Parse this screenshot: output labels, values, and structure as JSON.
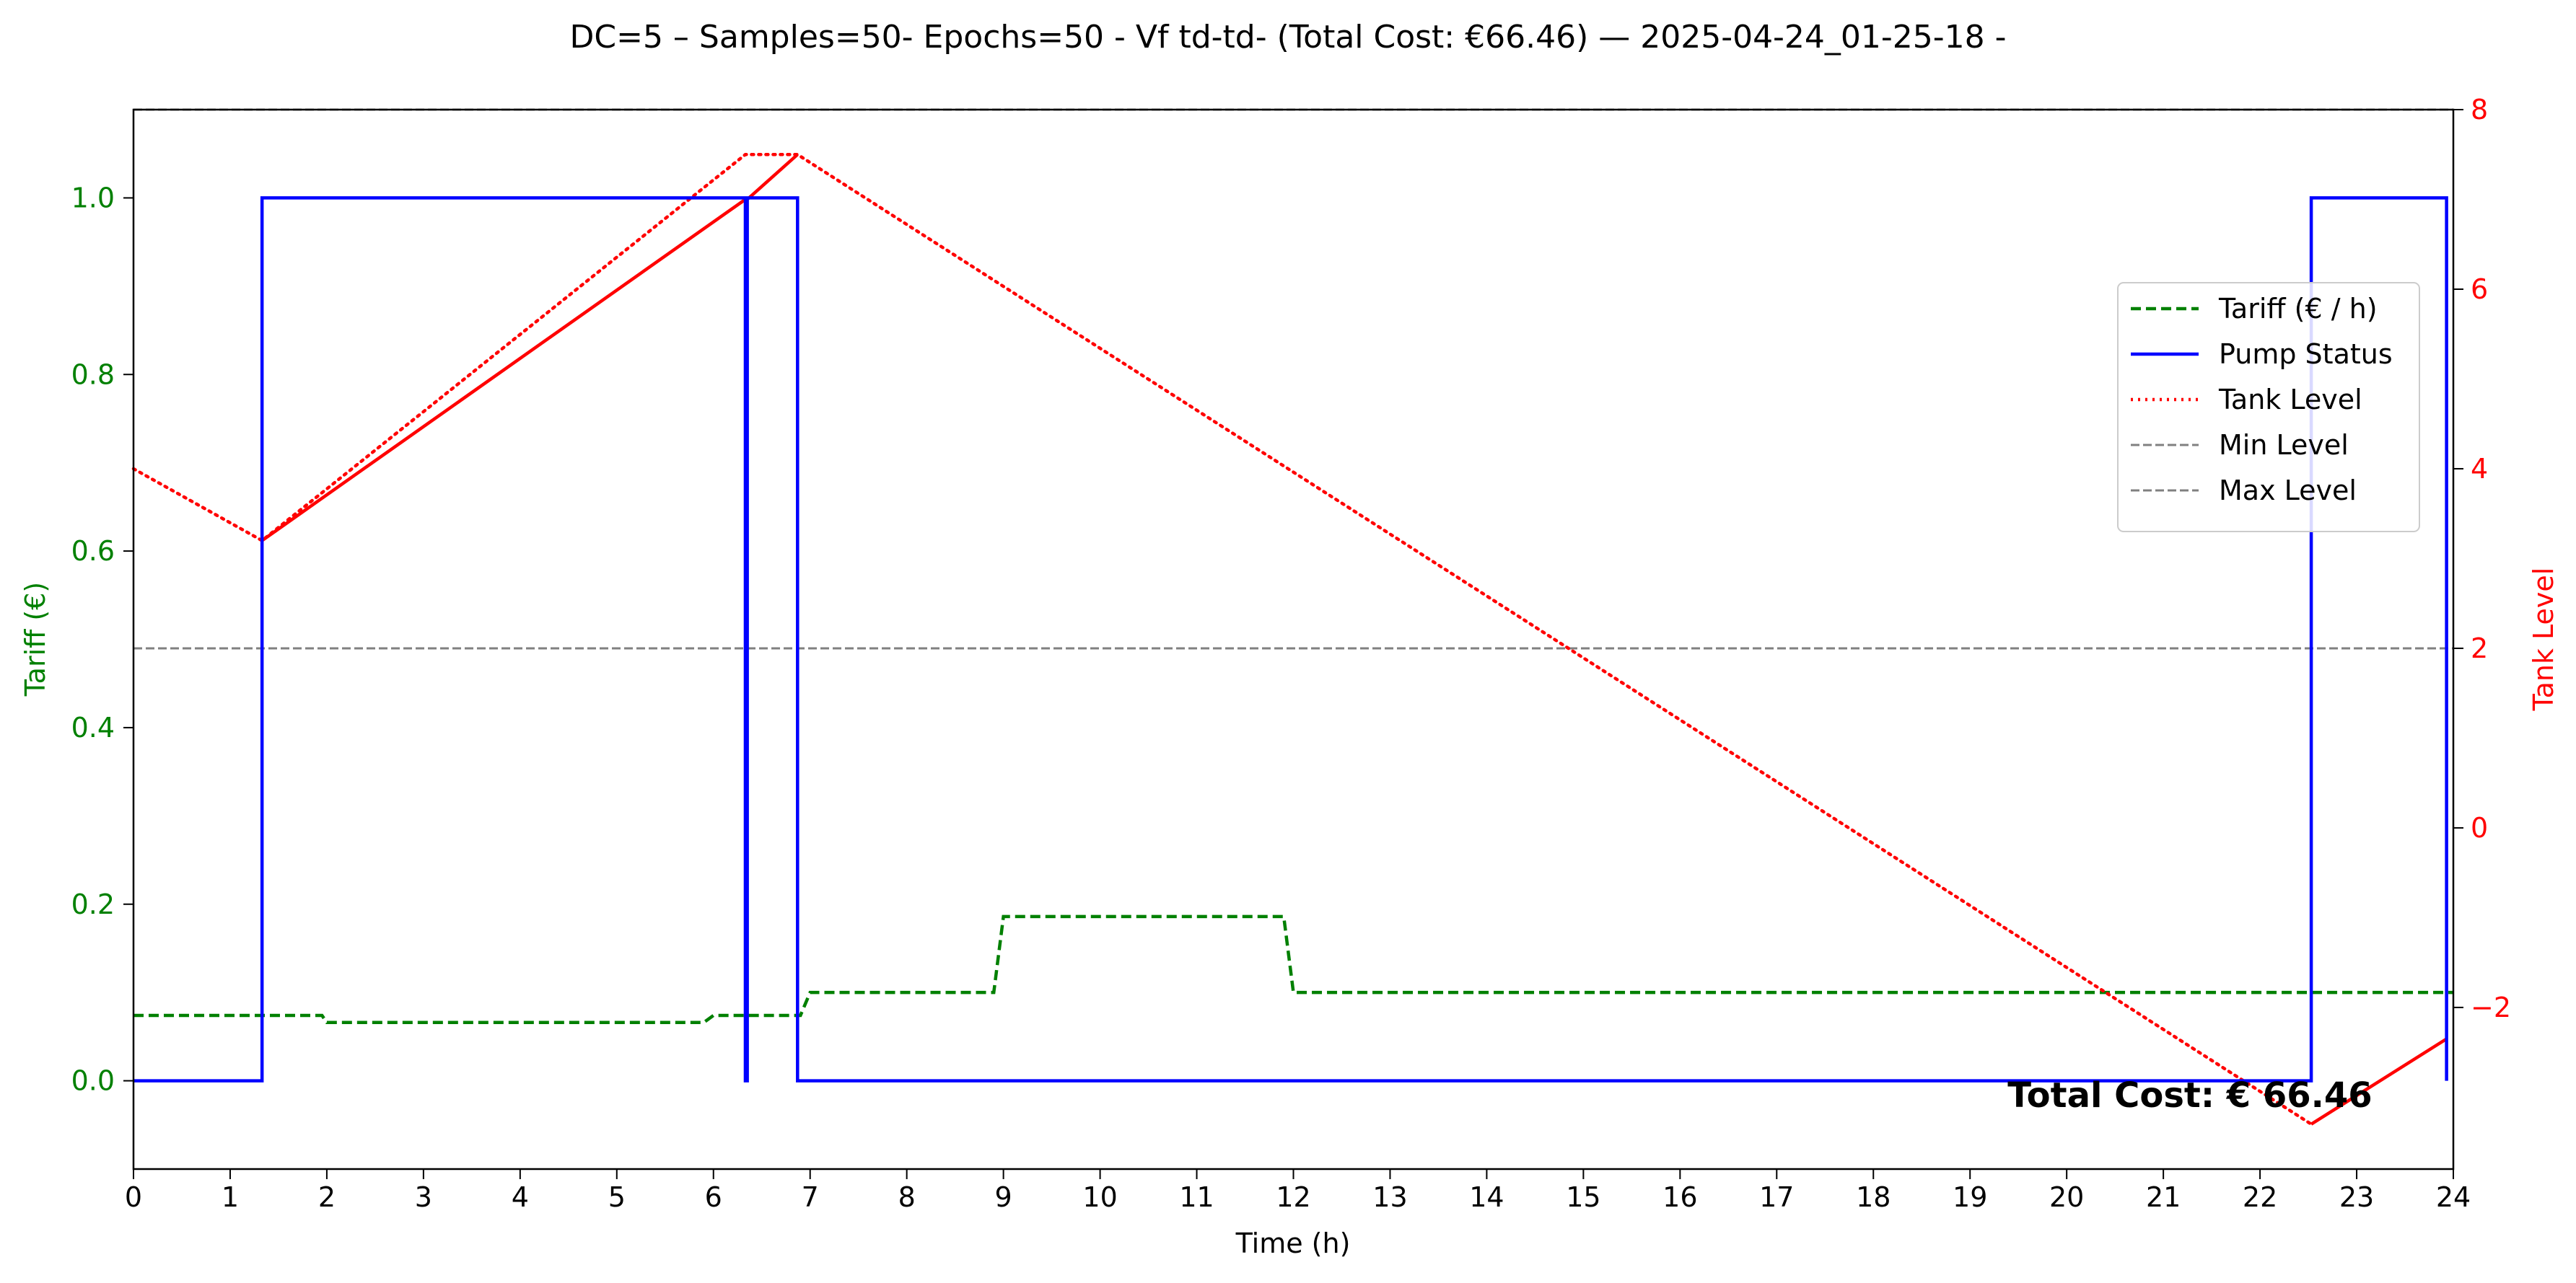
{
  "chart_data": {
    "type": "line",
    "title": "DC=5 – Samples=50- Epochs=50 - Vf td-td- (Total Cost: €66.46) — 2025-04-24_01-25-18 -",
    "xlabel": "Time (h)",
    "ylabel_left": "Tariff (€)",
    "ylabel_right": "Tank Level",
    "xlim": [
      0,
      24
    ],
    "ylim_left": [
      -0.1,
      1.1
    ],
    "ylim_right": [
      -3.8,
      8
    ],
    "x_ticks": [
      "0",
      "1",
      "2",
      "3",
      "4",
      "5",
      "6",
      "7",
      "8",
      "9",
      "10",
      "11",
      "12",
      "13",
      "14",
      "15",
      "16",
      "17",
      "18",
      "19",
      "20",
      "21",
      "22",
      "23",
      "24"
    ],
    "y_left_ticks": [
      "0.0",
      "0.2",
      "0.4",
      "0.6",
      "0.8",
      "1.0"
    ],
    "y_right_ticks": [
      "−2",
      "0",
      "2",
      "4",
      "6",
      "8"
    ],
    "grid": false,
    "legend_position": "upper right",
    "colors": {
      "tariff": "#008000",
      "pump": "#0000ff",
      "tank": "#ff0000",
      "limits": "#808080",
      "left_axis": "#008000",
      "right_axis": "#ff0000"
    },
    "series": [
      {
        "name": "Tariff (€ / h)",
        "axis": "left",
        "style": "dashed",
        "x": [
          0,
          1.95,
          2.0,
          5.9,
          6.0,
          6.9,
          7.0,
          8.9,
          9.0,
          11.9,
          12.0,
          24
        ],
        "y": [
          0.074,
          0.074,
          0.066,
          0.066,
          0.074,
          0.074,
          0.1,
          0.1,
          0.186,
          0.186,
          0.1,
          0.1
        ]
      },
      {
        "name": "Pump Status",
        "axis": "left",
        "style": "solid",
        "x": [
          0,
          1.33,
          1.33,
          6.33,
          6.33,
          6.35,
          6.35,
          6.87,
          6.87,
          22.53,
          22.53,
          23.93,
          23.93
        ],
        "y": [
          0,
          0,
          1,
          1,
          0,
          0,
          1,
          1,
          0,
          0,
          1,
          1,
          0
        ]
      },
      {
        "name": "Tank Level",
        "axis": "right",
        "style": "dotted",
        "x": [
          0,
          1.33,
          6.33,
          6.87,
          22.53
        ],
        "y": [
          4.0,
          3.2,
          7.5,
          7.5,
          -3.3
        ],
        "pumping_segments": [
          [
            1.33,
            6.33
          ],
          [
            6.35,
            6.87
          ],
          [
            22.53,
            23.93
          ]
        ],
        "pumping_values": [
          [
            3.2,
            7.0
          ],
          [
            7.0,
            7.5
          ],
          [
            -3.3,
            -2.35
          ]
        ]
      },
      {
        "name": "Min Level",
        "axis": "right",
        "style": "dashed",
        "y": 2.0
      },
      {
        "name": "Max Level",
        "axis": "right",
        "style": "dashed",
        "y": 8.0
      }
    ],
    "annotation": "Total Cost: € 66.46"
  }
}
